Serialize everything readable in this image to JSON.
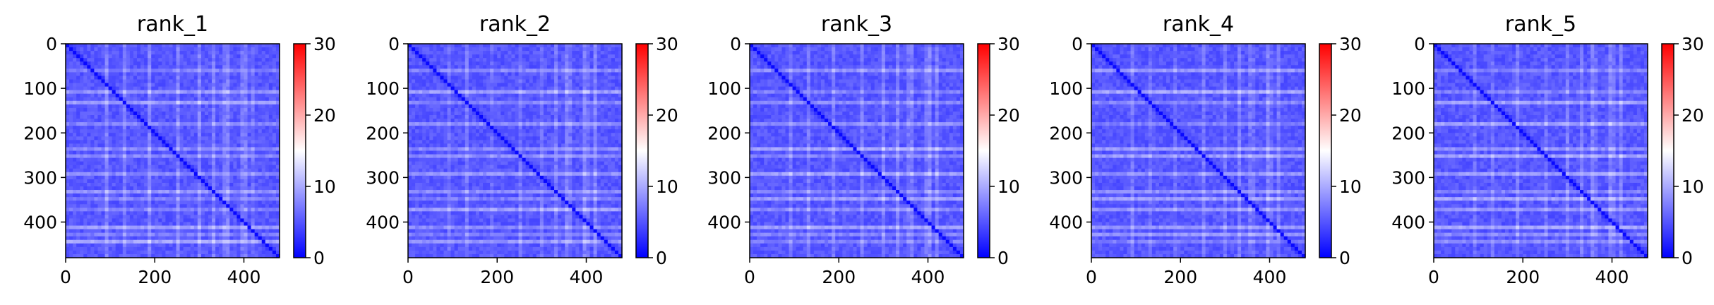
{
  "chart_data": [
    {
      "type": "heatmap",
      "title": "rank_1",
      "matrix_size": 480,
      "x_ticks": [
        "0",
        "200",
        "400"
      ],
      "y_ticks": [
        "0",
        "100",
        "200",
        "300",
        "400"
      ],
      "xlim": [
        0,
        480
      ],
      "ylim": [
        480,
        0
      ],
      "colorbar": {
        "range": [
          0,
          30
        ],
        "ticks": [
          "0",
          "10",
          "20",
          "30"
        ],
        "colors": [
          "#0000ff",
          "#ffffff",
          "#ff0000"
        ]
      },
      "typical_value": 4,
      "bright_rows": [
        60,
        110,
        130,
        180,
        235,
        255,
        290,
        330,
        350,
        375,
        415,
        425,
        445
      ],
      "bright_cols": [
        90,
        130,
        190,
        250,
        300,
        330,
        360,
        400,
        420
      ]
    },
    {
      "type": "heatmap",
      "title": "rank_2",
      "matrix_size": 480,
      "x_ticks": [
        "0",
        "200",
        "400"
      ],
      "y_ticks": [
        "0",
        "100",
        "200",
        "300",
        "400"
      ],
      "xlim": [
        0,
        480
      ],
      "ylim": [
        480,
        0
      ],
      "colorbar": {
        "range": [
          0,
          30
        ],
        "ticks": [
          "0",
          "10",
          "20",
          "30"
        ],
        "colors": [
          "#0000ff",
          "#ffffff",
          "#ff0000"
        ]
      },
      "typical_value": 4,
      "bright_rows": [
        60,
        110,
        130,
        180,
        235,
        255,
        290,
        330,
        350,
        375,
        415,
        425,
        445
      ],
      "bright_cols": [
        90,
        130,
        190,
        250,
        300,
        330,
        360,
        400,
        420
      ]
    },
    {
      "type": "heatmap",
      "title": "rank_3",
      "matrix_size": 480,
      "x_ticks": [
        "0",
        "200",
        "400"
      ],
      "y_ticks": [
        "0",
        "100",
        "200",
        "300",
        "400"
      ],
      "xlim": [
        0,
        480
      ],
      "ylim": [
        480,
        0
      ],
      "colorbar": {
        "range": [
          0,
          30
        ],
        "ticks": [
          "0",
          "10",
          "20",
          "30"
        ],
        "colors": [
          "#0000ff",
          "#ffffff",
          "#ff0000"
        ]
      },
      "typical_value": 4,
      "bright_rows": [
        60,
        110,
        130,
        180,
        235,
        255,
        290,
        330,
        350,
        375,
        415,
        425,
        445
      ],
      "bright_cols": [
        90,
        130,
        190,
        250,
        300,
        330,
        360,
        400,
        420
      ]
    },
    {
      "type": "heatmap",
      "title": "rank_4",
      "matrix_size": 480,
      "x_ticks": [
        "0",
        "200",
        "400"
      ],
      "y_ticks": [
        "0",
        "100",
        "200",
        "300",
        "400"
      ],
      "xlim": [
        0,
        480
      ],
      "ylim": [
        480,
        0
      ],
      "colorbar": {
        "range": [
          0,
          30
        ],
        "ticks": [
          "0",
          "10",
          "20",
          "30"
        ],
        "colors": [
          "#0000ff",
          "#ffffff",
          "#ff0000"
        ]
      },
      "typical_value": 4,
      "bright_rows": [
        60,
        110,
        130,
        180,
        235,
        255,
        290,
        330,
        350,
        375,
        415,
        425,
        445
      ],
      "bright_cols": [
        90,
        130,
        190,
        250,
        300,
        330,
        360,
        400,
        420
      ]
    },
    {
      "type": "heatmap",
      "title": "rank_5",
      "matrix_size": 480,
      "x_ticks": [
        "0",
        "200",
        "400"
      ],
      "y_ticks": [
        "0",
        "100",
        "200",
        "300",
        "400"
      ],
      "xlim": [
        0,
        480
      ],
      "ylim": [
        480,
        0
      ],
      "colorbar": {
        "range": [
          0,
          30
        ],
        "ticks": [
          "0",
          "10",
          "20",
          "30"
        ],
        "colors": [
          "#0000ff",
          "#ffffff",
          "#ff0000"
        ]
      },
      "typical_value": 4,
      "bright_rows": [
        60,
        110,
        130,
        180,
        235,
        255,
        290,
        330,
        350,
        375,
        415,
        425,
        445
      ],
      "bright_cols": [
        90,
        130,
        190,
        250,
        300,
        330,
        360,
        400,
        420
      ]
    }
  ]
}
